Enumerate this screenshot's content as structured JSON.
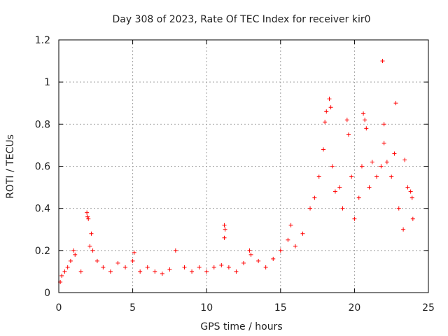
{
  "chart_data": {
    "type": "scatter",
    "title": "Day 308 of 2023, Rate Of TEC Index for receiver kir0",
    "xlabel": "GPS time / hours",
    "ylabel": "ROTI / TECUs",
    "xlim": [
      0,
      25
    ],
    "ylim": [
      0,
      1.2
    ],
    "x_ticks": [
      "0",
      "5",
      "10",
      "15",
      "20",
      "25"
    ],
    "y_ticks": [
      "0",
      "0.2",
      "0.4",
      "0.6",
      "0.8",
      "1",
      "1.2"
    ],
    "grid": true,
    "marker": "+",
    "marker_color": "#ff0000",
    "series": [
      {
        "points": [
          [
            0.1,
            0.05
          ],
          [
            0.2,
            0.08
          ],
          [
            0.4,
            0.1
          ],
          [
            0.6,
            0.12
          ],
          [
            0.8,
            0.15
          ],
          [
            1.0,
            0.2
          ],
          [
            1.1,
            0.18
          ],
          [
            1.5,
            0.1
          ],
          [
            1.9,
            0.38
          ],
          [
            1.95,
            0.36
          ],
          [
            2.0,
            0.35
          ],
          [
            2.1,
            0.22
          ],
          [
            2.2,
            0.28
          ],
          [
            2.3,
            0.2
          ],
          [
            2.6,
            0.15
          ],
          [
            3.0,
            0.12
          ],
          [
            3.5,
            0.1
          ],
          [
            4.0,
            0.14
          ],
          [
            4.5,
            0.12
          ],
          [
            5.0,
            0.15
          ],
          [
            5.1,
            0.19
          ],
          [
            5.5,
            0.1
          ],
          [
            6.0,
            0.12
          ],
          [
            6.5,
            0.1
          ],
          [
            7.0,
            0.09
          ],
          [
            7.5,
            0.11
          ],
          [
            7.9,
            0.2
          ],
          [
            8.5,
            0.12
          ],
          [
            9.0,
            0.1
          ],
          [
            9.5,
            0.12
          ],
          [
            10.0,
            0.1
          ],
          [
            10.5,
            0.12
          ],
          [
            11.0,
            0.13
          ],
          [
            11.2,
            0.32
          ],
          [
            11.25,
            0.3
          ],
          [
            11.2,
            0.26
          ],
          [
            11.5,
            0.12
          ],
          [
            12.0,
            0.1
          ],
          [
            12.5,
            0.14
          ],
          [
            12.9,
            0.2
          ],
          [
            13.0,
            0.18
          ],
          [
            13.5,
            0.15
          ],
          [
            14.0,
            0.12
          ],
          [
            14.5,
            0.16
          ],
          [
            15.0,
            0.2
          ],
          [
            15.5,
            0.25
          ],
          [
            15.7,
            0.32
          ],
          [
            16.0,
            0.22
          ],
          [
            16.5,
            0.28
          ],
          [
            17.0,
            0.4
          ],
          [
            17.3,
            0.45
          ],
          [
            17.6,
            0.55
          ],
          [
            17.9,
            0.68
          ],
          [
            18.0,
            0.81
          ],
          [
            18.1,
            0.86
          ],
          [
            18.3,
            0.92
          ],
          [
            18.4,
            0.88
          ],
          [
            18.5,
            0.6
          ],
          [
            18.7,
            0.48
          ],
          [
            19.0,
            0.5
          ],
          [
            19.2,
            0.4
          ],
          [
            19.5,
            0.82
          ],
          [
            19.6,
            0.75
          ],
          [
            19.8,
            0.55
          ],
          [
            20.0,
            0.35
          ],
          [
            20.3,
            0.45
          ],
          [
            20.5,
            0.6
          ],
          [
            20.6,
            0.85
          ],
          [
            20.7,
            0.82
          ],
          [
            20.8,
            0.78
          ],
          [
            21.0,
            0.5
          ],
          [
            21.2,
            0.62
          ],
          [
            21.5,
            0.55
          ],
          [
            21.8,
            0.6
          ],
          [
            21.9,
            1.1
          ],
          [
            22.0,
            0.8
          ],
          [
            22.0,
            0.71
          ],
          [
            22.2,
            0.62
          ],
          [
            22.5,
            0.55
          ],
          [
            22.7,
            0.66
          ],
          [
            22.8,
            0.9
          ],
          [
            23.0,
            0.4
          ],
          [
            23.3,
            0.3
          ],
          [
            23.4,
            0.63
          ],
          [
            23.6,
            0.5
          ],
          [
            23.8,
            0.48
          ],
          [
            23.9,
            0.45
          ],
          [
            23.95,
            0.35
          ]
        ]
      }
    ]
  }
}
